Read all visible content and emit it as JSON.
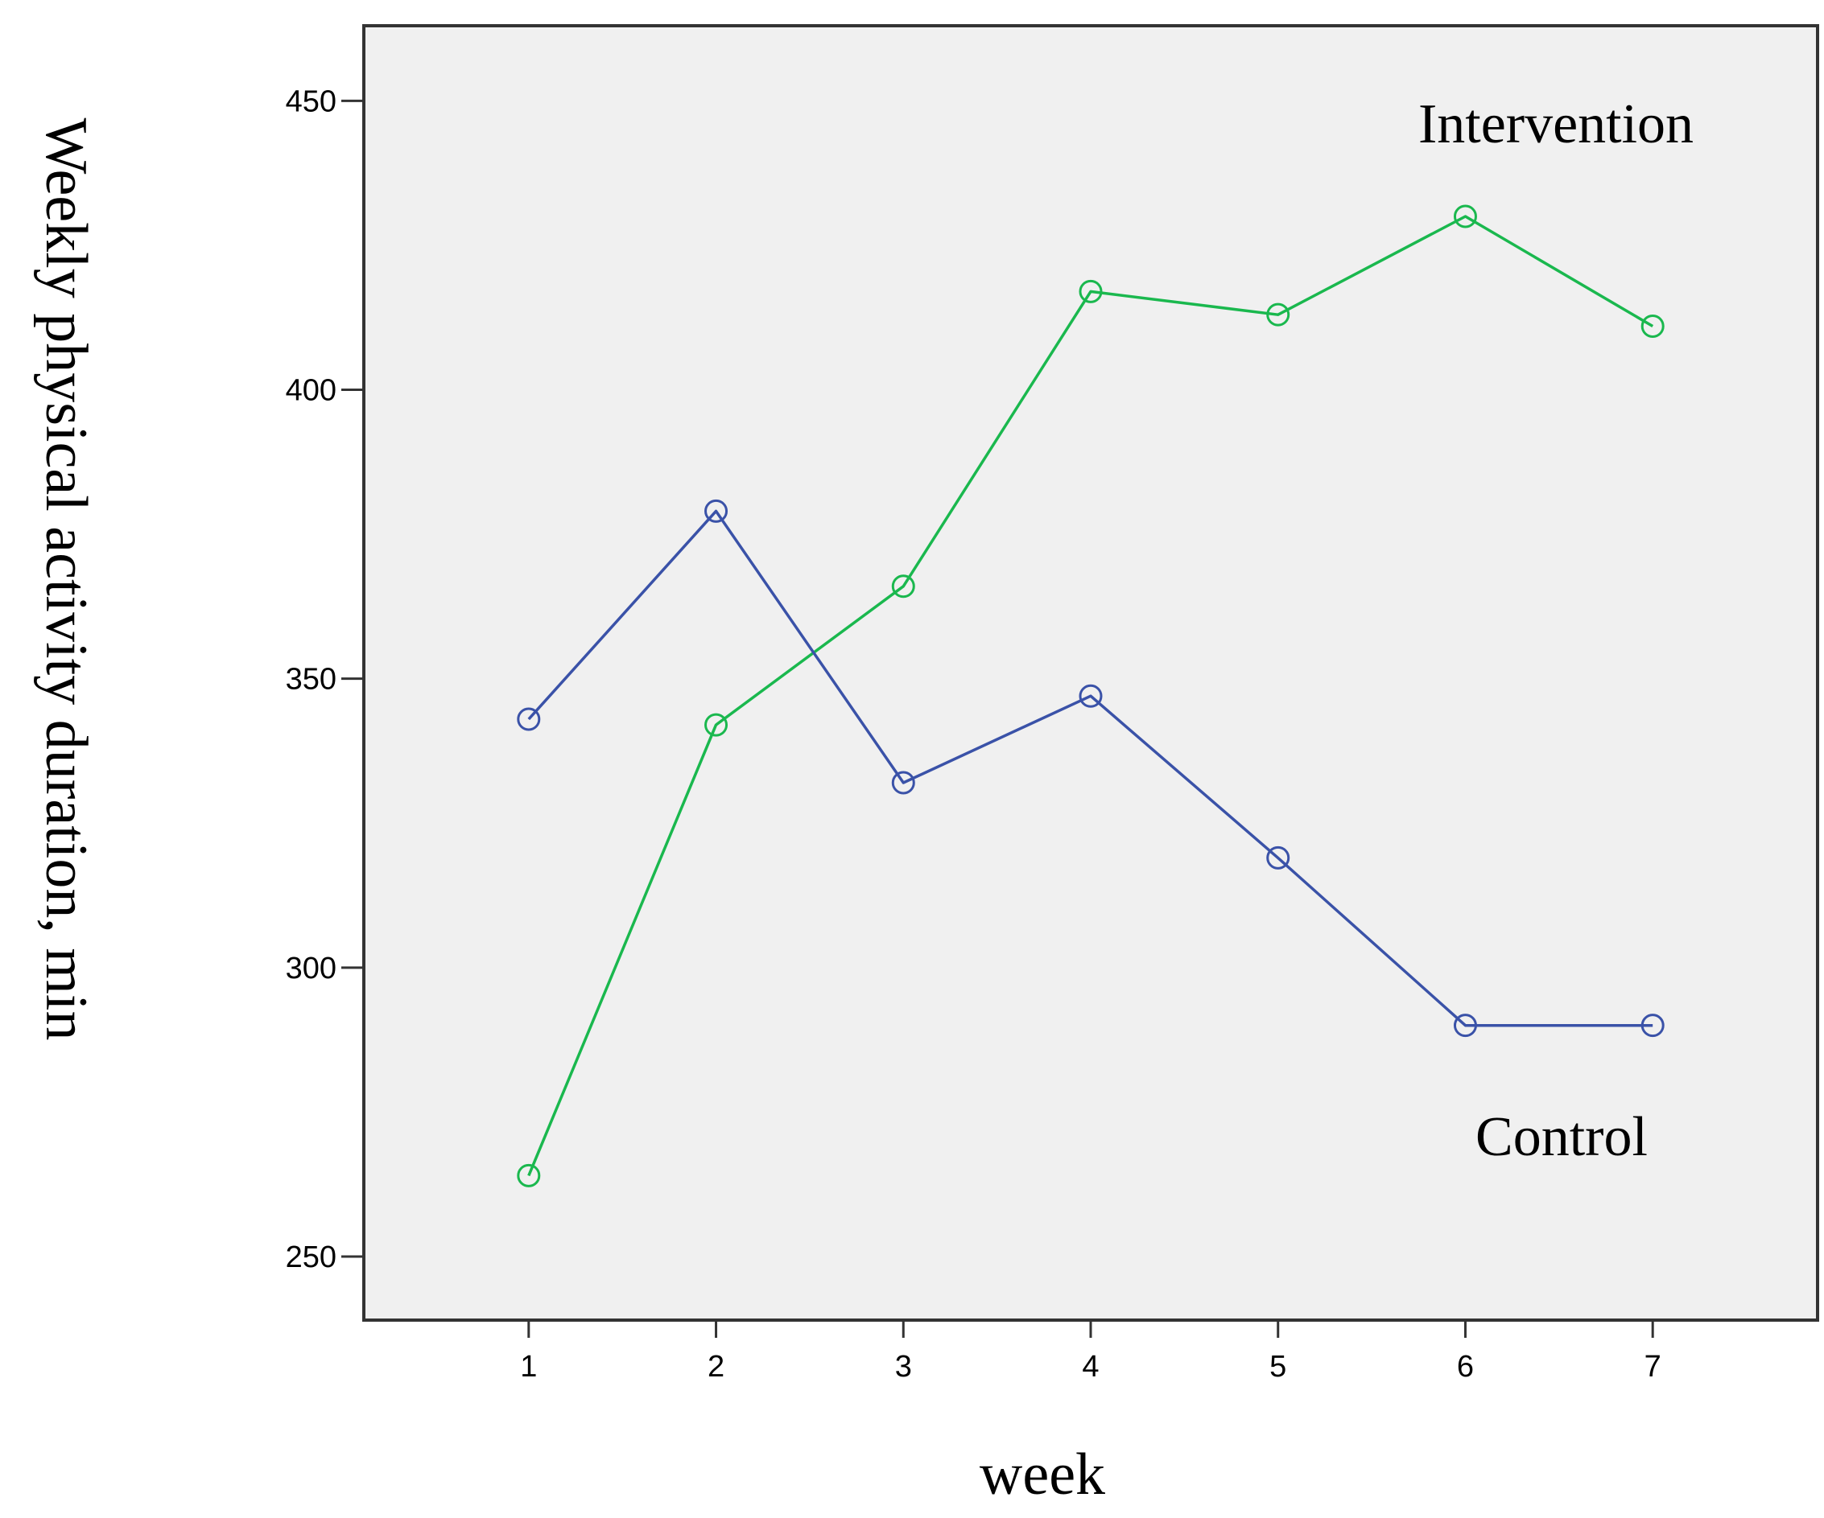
{
  "chart_data": {
    "type": "line",
    "title": "",
    "xlabel": "week",
    "ylabel": "Weekly physical activity duration, min",
    "x": [
      1,
      2,
      3,
      4,
      5,
      6,
      7
    ],
    "xlim": [
      0.12,
      7.88
    ],
    "ylim": [
      239,
      463
    ],
    "yticks": [
      250,
      300,
      350,
      400,
      450
    ],
    "grid": false,
    "legend": "none",
    "plot_background": "#f0f0f0",
    "series": [
      {
        "name": "Intervention",
        "color": "#1ab84e",
        "marker": "open-circle",
        "values": [
          264,
          342,
          366,
          417,
          413,
          430,
          411
        ]
      },
      {
        "name": "Control",
        "color": "#3a52a8",
        "marker": "open-circle",
        "values": [
          343,
          379,
          332,
          347,
          319,
          290,
          290
        ]
      }
    ],
    "annotations": [
      {
        "text": "Intervention",
        "series": "Intervention"
      },
      {
        "text": "Control",
        "series": "Control"
      }
    ]
  }
}
